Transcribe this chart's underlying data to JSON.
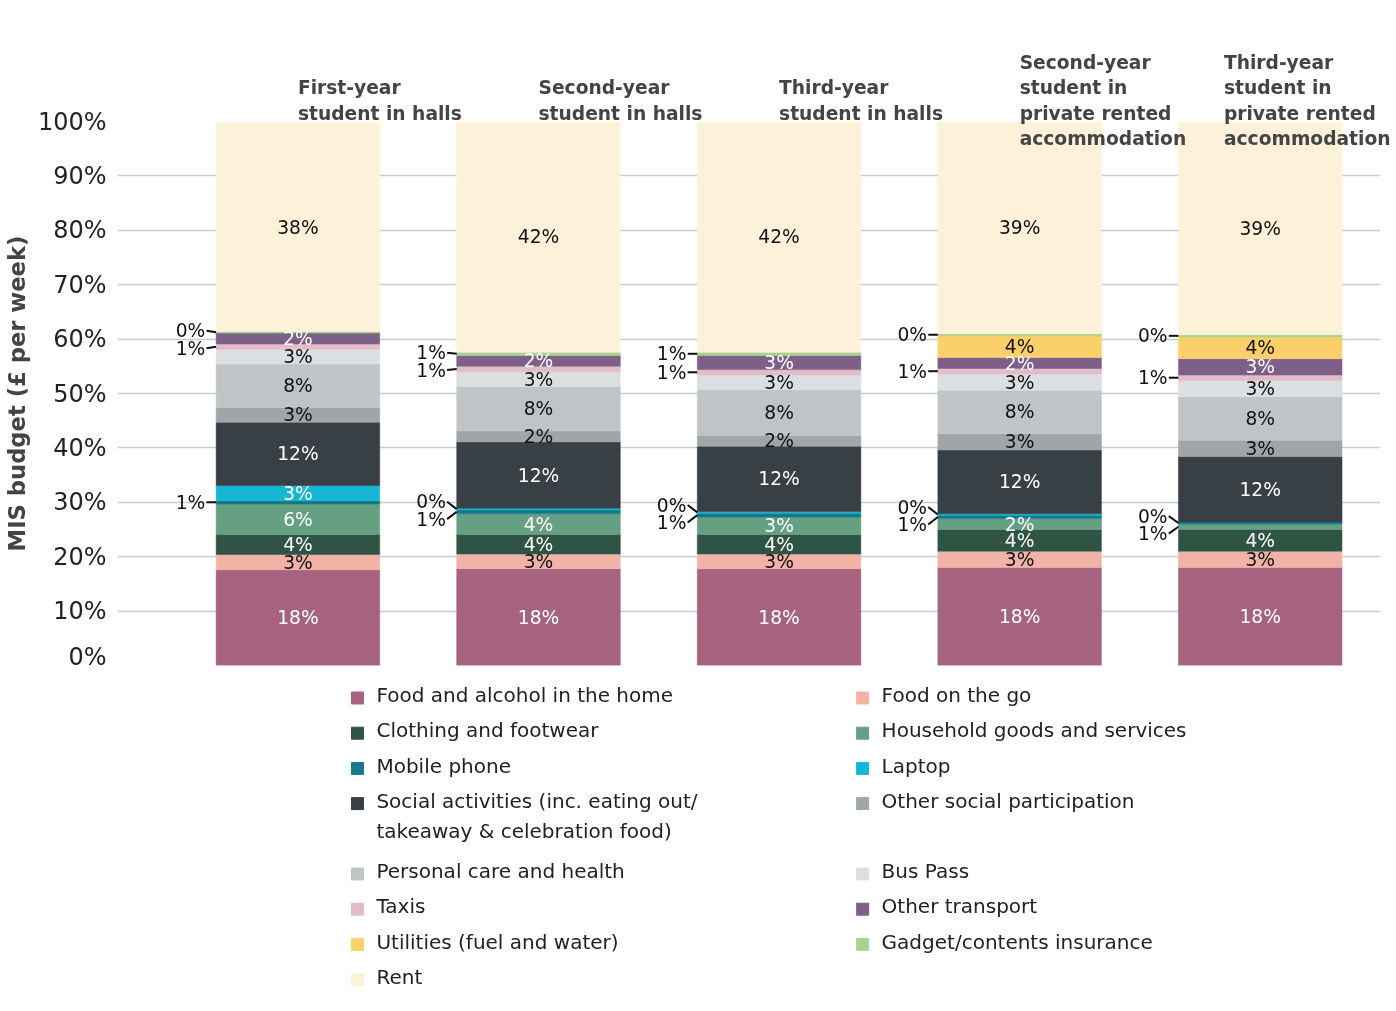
{
  "chart_data": {
    "type": "bar",
    "stacked": true,
    "ylabel": "MIS budget (£ per week)",
    "categories": [
      "First-year student in halls",
      "Second-year student in halls",
      "Third-year student in halls",
      "Second-year student in private rented accommodation",
      "Third-year student in private rented accommodation"
    ],
    "ylim": [
      0,
      100
    ],
    "yticks": [
      {
        "value": 0,
        "label": "0%"
      },
      {
        "value": 10,
        "label": "10%"
      },
      {
        "value": 20,
        "label": "20%"
      },
      {
        "value": 30,
        "label": "30%"
      },
      {
        "value": 40,
        "label": "40%"
      },
      {
        "value": 50,
        "label": "50%"
      },
      {
        "value": 60,
        "label": "60%"
      },
      {
        "value": 70,
        "label": "70%"
      },
      {
        "value": 80,
        "label": "80%"
      },
      {
        "value": 90,
        "label": "90%"
      },
      {
        "value": 100,
        "label": "100%"
      }
    ],
    "grid": "y",
    "legend": "bottom",
    "series": [
      {
        "name": "Food and alcohol in the home",
        "color": "#a6637f",
        "values": [
          17.6,
          17.8,
          17.8,
          18,
          18
        ],
        "value_labels": [
          "18%",
          "18%",
          "18%",
          "18%",
          "18%"
        ]
      },
      {
        "name": "Food on the go",
        "color": "#f2b3a7",
        "values": [
          2.8,
          2.7,
          2.7,
          3,
          3
        ],
        "value_labels": [
          "3%",
          "3%",
          "3%",
          "3%",
          "3%"
        ]
      },
      {
        "name": "Clothing and footwear",
        "color": "#2f5446",
        "values": [
          3.7,
          3.6,
          3.6,
          4,
          4
        ],
        "value_labels": [
          "4%",
          "4%",
          "4%",
          "4%",
          "4%"
        ]
      },
      {
        "name": "Household goods and services",
        "color": "#65a083",
        "values": [
          5.6,
          3.8,
          3.2,
          2,
          1
        ],
        "value_labels": [
          "6%",
          "4%",
          "3%",
          "2%",
          "1%"
        ]
      },
      {
        "name": "Mobile phone",
        "color": "#16798a",
        "values": [
          0.6,
          0.7,
          0.7,
          0.6,
          0.4
        ],
        "value_labels": [
          "1%",
          "1%",
          "1%",
          "1%",
          "0%"
        ]
      },
      {
        "name": "Laptop",
        "color": "#17b5d4",
        "values": [
          2.8,
          0.3,
          0.3,
          0.3,
          null
        ],
        "value_labels": [
          "3%",
          "0%",
          "0%",
          "0%",
          null
        ]
      },
      {
        "name": "Social activities (inc. eating out/ takeaway & celebration food)",
        "color": "#383f45",
        "values": [
          11.6,
          12.2,
          12.0,
          11.7,
          12
        ],
        "value_labels": [
          "12%",
          "12%",
          "12%",
          "12%",
          "12%"
        ]
      },
      {
        "name": "Other social participation",
        "color": "#a0a5a8",
        "values": [
          2.7,
          2.0,
          2.0,
          3,
          3
        ],
        "value_labels": [
          "3%",
          "2%",
          "2%",
          "3%",
          "3%"
        ]
      },
      {
        "name": "Personal care and health",
        "color": "#c0c4c7",
        "values": [
          8.0,
          8.2,
          8.4,
          8,
          8
        ],
        "value_labels": [
          "8%",
          "8%",
          "8%",
          "8%",
          "8%"
        ]
      },
      {
        "name": "Bus Pass",
        "color": "#dcdfe1",
        "values": [
          2.7,
          2.7,
          2.7,
          3,
          3
        ],
        "value_labels": [
          "3%",
          "3%",
          "3%",
          "3%",
          "3%"
        ]
      },
      {
        "name": "Taxis",
        "color": "#e2bcc6",
        "values": [
          1.0,
          1.0,
          1.0,
          1,
          1
        ],
        "value_labels": [
          "1%",
          "1%",
          "1%",
          "1%",
          "1%"
        ]
      },
      {
        "name": "Other transport",
        "color": "#7d5f88",
        "values": [
          2.0,
          2.0,
          2.6,
          2,
          3
        ],
        "value_labels": [
          "2%",
          "2%",
          "3%",
          "2%",
          "3%"
        ]
      },
      {
        "name": "Utilities (fuel and water)",
        "color": "#fbd06a",
        "values": [
          null,
          null,
          null,
          4,
          4
        ],
        "value_labels": [
          null,
          null,
          null,
          "4%",
          "4%"
        ]
      },
      {
        "name": "Gadget/contents insurance",
        "color": "#a8d38e",
        "values": [
          0.3,
          0.6,
          0.6,
          0.4,
          0.4
        ],
        "value_labels": [
          "0%",
          "1%",
          "1%",
          "0%",
          "0%"
        ]
      },
      {
        "name": "Rent",
        "color": "#fdf1da",
        "values": [
          38.4,
          42.4,
          42.4,
          39,
          39.2
        ],
        "value_labels": [
          "38%",
          "42%",
          "42%",
          "39%",
          "39%"
        ]
      }
    ]
  }
}
